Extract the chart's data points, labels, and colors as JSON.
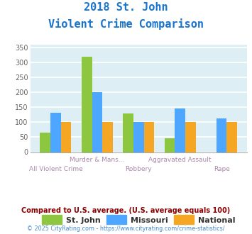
{
  "title_line1": "2018 St. John",
  "title_line2": "Violent Crime Comparison",
  "title_color": "#1874cd",
  "categories": [
    "All Violent Crime",
    "Murder & Mans...",
    "Robbery",
    "Aggravated Assault",
    "Rape"
  ],
  "labels_top": [
    "",
    "Murder & Mans...",
    "",
    "Aggravated Assault",
    ""
  ],
  "labels_bottom": [
    "All Violent Crime",
    "",
    "Robbery",
    "",
    "Rape"
  ],
  "st_john": [
    65,
    318,
    130,
    47,
    0
  ],
  "missouri": [
    132,
    200,
    100,
    147,
    112
  ],
  "national": [
    100,
    100,
    100,
    100,
    100
  ],
  "st_john_color": "#8dc63f",
  "missouri_color": "#4da6ff",
  "national_color": "#f5a623",
  "ylim": [
    0,
    360
  ],
  "yticks": [
    0,
    50,
    100,
    150,
    200,
    250,
    300,
    350
  ],
  "background_color": "#ddeef5",
  "grid_color": "#ffffff",
  "legend_labels": [
    "St. John",
    "Missouri",
    "National"
  ],
  "footer_text": "Compared to U.S. average. (U.S. average equals 100)",
  "footer_color": "#8b0000",
  "copyright_text": "© 2025 CityRating.com - https://www.cityrating.com/crime-statistics/",
  "copyright_color": "#4488cc",
  "xlabel_color": "#aa88aa",
  "bar_width": 0.25
}
